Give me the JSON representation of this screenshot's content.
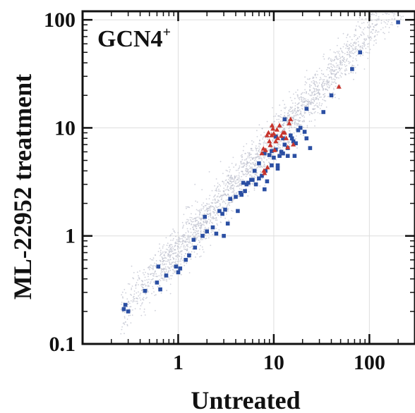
{
  "chart_data": {
    "type": "scatter",
    "title": "",
    "panel_label": {
      "text": "GCN4",
      "superscript": "+"
    },
    "xlabel": "Untreated",
    "ylabel": "ML-22952 treatment",
    "xscale": "log",
    "yscale": "log",
    "xlim": [
      0.1,
      300
    ],
    "ylim": [
      0.1,
      120
    ],
    "grid": true,
    "x_ticks": [
      {
        "value": 1,
        "label": "1"
      },
      {
        "value": 10,
        "label": "10"
      },
      {
        "value": 100,
        "label": "100"
      }
    ],
    "y_ticks": [
      {
        "value": 0.1,
        "label": "0.1"
      },
      {
        "value": 1,
        "label": "1"
      },
      {
        "value": 10,
        "label": "10"
      },
      {
        "value": 100,
        "label": "100"
      }
    ],
    "colors": {
      "background_points": "#b9bccb",
      "blue_squares": "#2b4fa3",
      "red_triangles": "#c8352d",
      "axis": "#111111",
      "grid": "#dddddd"
    },
    "background_cloud": {
      "description_marker": "small grey dots along diagonal",
      "x_range": [
        0.25,
        250
      ],
      "trend": "y approx equals x",
      "count": 2500
    },
    "series": [
      {
        "marker": "square",
        "color": "#2b4fa3",
        "points": [
          [
            0.27,
            0.21
          ],
          [
            0.3,
            0.2
          ],
          [
            0.28,
            0.23
          ],
          [
            0.45,
            0.31
          ],
          [
            0.6,
            0.37
          ],
          [
            0.65,
            0.32
          ],
          [
            0.62,
            0.52
          ],
          [
            0.75,
            0.43
          ],
          [
            1.0,
            0.46
          ],
          [
            0.95,
            0.52
          ],
          [
            1.05,
            0.5
          ],
          [
            1.2,
            0.6
          ],
          [
            1.3,
            0.66
          ],
          [
            1.5,
            0.78
          ],
          [
            1.45,
            0.92
          ],
          [
            1.8,
            1.0
          ],
          [
            2.0,
            1.1
          ],
          [
            1.9,
            1.5
          ],
          [
            2.3,
            1.2
          ],
          [
            2.5,
            1.05
          ],
          [
            2.7,
            1.7
          ],
          [
            2.9,
            1.6
          ],
          [
            3.0,
            1.0
          ],
          [
            3.1,
            1.75
          ],
          [
            3.3,
            1.3
          ],
          [
            3.5,
            2.2
          ],
          [
            4.0,
            2.3
          ],
          [
            4.2,
            1.7
          ],
          [
            4.5,
            2.5
          ],
          [
            4.6,
            2.4
          ],
          [
            4.8,
            3.1
          ],
          [
            5.0,
            2.6
          ],
          [
            5.2,
            3.0
          ],
          [
            5.4,
            3.1
          ],
          [
            6.0,
            3.3
          ],
          [
            6.3,
            4.0
          ],
          [
            6.5,
            3.0
          ],
          [
            7.0,
            3.4
          ],
          [
            7.0,
            4.7
          ],
          [
            7.5,
            3.6
          ],
          [
            8.0,
            2.7
          ],
          [
            8.5,
            3.2
          ],
          [
            8.2,
            4.0
          ],
          [
            9.0,
            5.6
          ],
          [
            9.5,
            4.5
          ],
          [
            10.0,
            5.3
          ],
          [
            10.5,
            6.3
          ],
          [
            11.0,
            4.5
          ],
          [
            11.5,
            5.5
          ],
          [
            12.0,
            6.0
          ],
          [
            12.5,
            5.8
          ],
          [
            13.0,
            7.0
          ],
          [
            13.0,
            12.0
          ],
          [
            14.0,
            6.5
          ],
          [
            15.0,
            8.5
          ],
          [
            16.0,
            7.5
          ],
          [
            16.5,
            5.5
          ],
          [
            18.0,
            9.5
          ],
          [
            19.0,
            10.0
          ],
          [
            21.0,
            9.2
          ],
          [
            22.0,
            15.0
          ],
          [
            22.0,
            8.0
          ],
          [
            24.0,
            6.5
          ],
          [
            33.0,
            14.0
          ],
          [
            40.0,
            20.0
          ],
          [
            66.0,
            35.0
          ],
          [
            80.0,
            50.0
          ],
          [
            200.0,
            95.0
          ],
          [
            11.0,
            4.2
          ],
          [
            12.5,
            8.0
          ],
          [
            10.5,
            8.3
          ],
          [
            8.0,
            5.8
          ],
          [
            15.5,
            8.0
          ],
          [
            17.0,
            7.2
          ],
          [
            14.0,
            5.5
          ],
          [
            9.5,
            6.1
          ],
          [
            5.8,
            3.3
          ]
        ]
      },
      {
        "marker": "triangle",
        "color": "#c8352d",
        "points": [
          [
            7.5,
            5.8
          ],
          [
            7.8,
            6.4
          ],
          [
            8.2,
            6.2
          ],
          [
            8.5,
            8.5
          ],
          [
            8.8,
            9.0
          ],
          [
            9.0,
            7.5
          ],
          [
            9.2,
            6.9
          ],
          [
            9.5,
            8.5
          ],
          [
            9.6,
            10.5
          ],
          [
            9.8,
            9.8
          ],
          [
            10.0,
            8.8
          ],
          [
            10.2,
            6.2
          ],
          [
            10.5,
            7.5
          ],
          [
            10.8,
            9.6
          ],
          [
            11.0,
            8.0
          ],
          [
            11.5,
            10.5
          ],
          [
            12.0,
            8.4
          ],
          [
            12.5,
            9.0
          ],
          [
            13.0,
            9.0
          ],
          [
            13.5,
            8.0
          ],
          [
            14.0,
            6.6
          ],
          [
            14.5,
            11.0
          ],
          [
            15.0,
            12.0
          ],
          [
            8.0,
            3.8
          ],
          [
            7.9,
            4.0
          ],
          [
            8.6,
            4.3
          ],
          [
            16.0,
            7.0
          ],
          [
            48.0,
            24.0
          ]
        ]
      }
    ]
  }
}
